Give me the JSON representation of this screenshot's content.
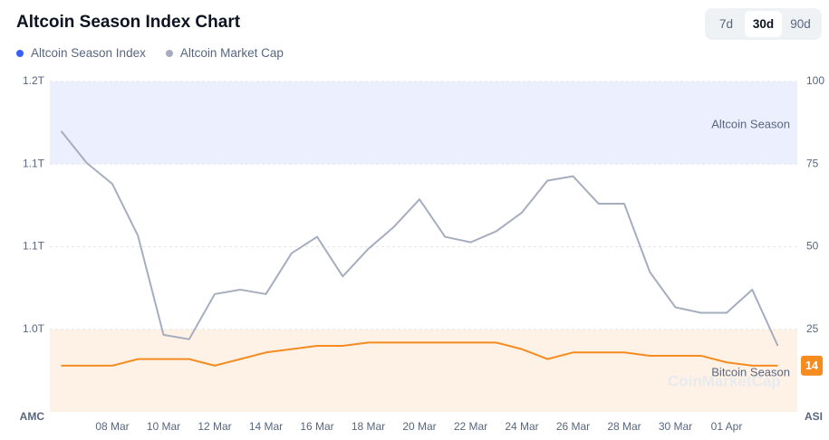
{
  "title": "Altcoin Season Index Chart",
  "tabs": {
    "options": [
      "7d",
      "30d",
      "90d"
    ],
    "selected": 1
  },
  "chart_data": {
    "type": "line",
    "categories": [
      null,
      null,
      "08 Mar",
      null,
      "10 Mar",
      null,
      "12 Mar",
      null,
      "14 Mar",
      null,
      "16 Mar",
      null,
      "18 Mar",
      null,
      "20 Mar",
      null,
      "22 Mar",
      null,
      "24 Mar",
      null,
      "26 Mar",
      null,
      "28 Mar",
      null,
      "30 Mar",
      null,
      "01 Apr",
      null,
      null
    ],
    "series": [
      {
        "name": "Altcoin Season Index",
        "axis": "y2",
        "color": "#f68b1f",
        "legend_color": "#3861fb",
        "values": [
          14,
          14,
          14,
          16,
          16,
          16,
          14,
          16,
          18,
          19,
          20,
          20,
          21,
          21,
          21,
          21,
          21,
          21,
          19,
          16,
          18,
          18,
          18,
          17,
          17,
          17,
          15,
          14,
          14
        ]
      },
      {
        "name": "Altcoin Market Cap",
        "axis": "y",
        "color": "#a6adbf",
        "legend_color": "#a6adbf",
        "values": [
          1.155,
          1.126,
          1.107,
          1.06,
          0.97,
          0.966,
          1.007,
          1.011,
          1.007,
          1.044,
          1.059,
          1.023,
          1.048,
          1.068,
          1.093,
          1.059,
          1.054,
          1.064,
          1.081,
          1.11,
          1.114,
          1.089,
          1.089,
          1.027,
          0.995,
          0.99,
          0.99,
          1.011,
          0.96
        ]
      }
    ],
    "ylim": [
      0.9,
      1.2
    ],
    "yticks": [
      {
        "value": 1.2,
        "label": "1.2T"
      },
      {
        "value": 1.125,
        "label": "1.1T"
      },
      {
        "value": 1.05,
        "label": "1.1T"
      },
      {
        "value": 0.975,
        "label": "1.0T"
      }
    ],
    "y_label": "AMC",
    "y2lim": [
      0,
      100
    ],
    "y2ticks": [
      25,
      50,
      75,
      100
    ],
    "y2_label": "ASI",
    "grid": true,
    "bands": [
      {
        "name": "Altcoin Season",
        "from": 75,
        "to": 100,
        "color": "#eceffe"
      },
      {
        "name": "Bitcoin Season",
        "from": 0,
        "to": 25,
        "color": "#fef2e7"
      }
    ],
    "watermark": "CoinMarketCap"
  }
}
